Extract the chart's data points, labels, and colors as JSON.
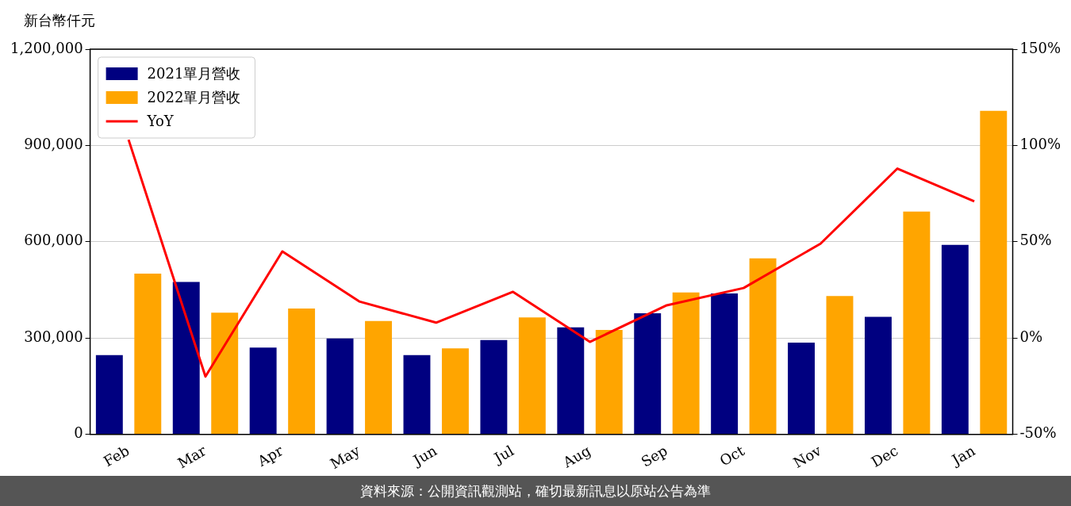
{
  "chart_data": {
    "type": "bar",
    "ylabel": "新台幣仟元",
    "categories": [
      "Feb",
      "Mar",
      "Apr",
      "May",
      "Jun",
      "Jul",
      "Aug",
      "Sep",
      "Oct",
      "Nov",
      "Dec",
      "Jan"
    ],
    "series": [
      {
        "name": "2021單月營收",
        "color": "#000080",
        "values": [
          247000,
          475000,
          270000,
          299000,
          247000,
          294000,
          333000,
          377000,
          439000,
          286000,
          366000,
          590000
        ]
      },
      {
        "name": "2022單月營收",
        "color": "#ffa500",
        "values": [
          501000,
          379000,
          392000,
          353000,
          268000,
          364000,
          325000,
          442000,
          548000,
          431000,
          694000,
          1008000
        ]
      },
      {
        "name": "YoY",
        "type": "line",
        "axis": "y2",
        "color": "#ff0000",
        "values": [
          103,
          -20,
          45,
          19,
          8,
          24,
          -2,
          17,
          26,
          49,
          88,
          71
        ]
      }
    ],
    "ylim": [
      0,
      1200000
    ],
    "yticks": [
      {
        "value": 0,
        "label": "0"
      },
      {
        "value": 300000,
        "label": "300,000"
      },
      {
        "value": 600000,
        "label": "600,000"
      },
      {
        "value": 900000,
        "label": "900,000"
      },
      {
        "value": 1200000,
        "label": "1,200,000"
      }
    ],
    "y2lim": [
      -50,
      150
    ],
    "y2ticks": [
      {
        "value": -50,
        "label": "-50%"
      },
      {
        "value": 0,
        "label": "0%"
      },
      {
        "value": 50,
        "label": "50%"
      },
      {
        "value": 100,
        "label": "100%"
      },
      {
        "value": 150,
        "label": "150%"
      }
    ],
    "grid": "y",
    "legend": "top left",
    "marker": "none",
    "annotations": [
      "資料來源：公開資訊觀測站，確切最新訊息以原站公告為準"
    ]
  }
}
